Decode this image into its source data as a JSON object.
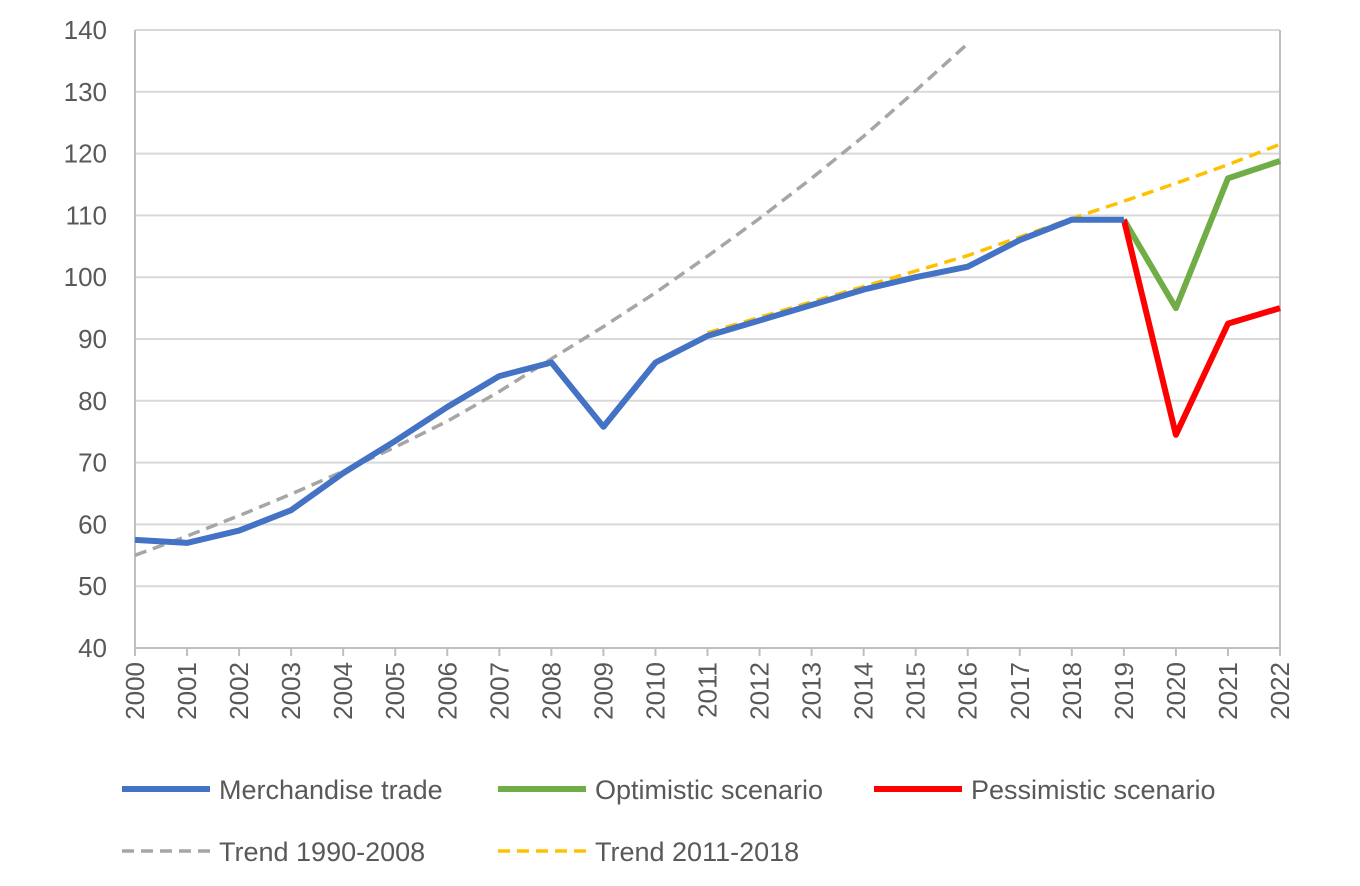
{
  "chart_data": {
    "type": "line",
    "title": "",
    "xlabel": "",
    "ylabel": "",
    "ylim": [
      40,
      140
    ],
    "yticks": [
      40,
      50,
      60,
      70,
      80,
      90,
      100,
      110,
      120,
      130,
      140
    ],
    "x": [
      2000,
      2001,
      2002,
      2003,
      2004,
      2005,
      2006,
      2007,
      2008,
      2009,
      2010,
      2011,
      2012,
      2013,
      2014,
      2015,
      2016,
      2017,
      2018,
      2019,
      2020,
      2021,
      2022
    ],
    "grid": "horizontal",
    "legend_position": "bottom",
    "series": [
      {
        "name": "Merchandise trade",
        "color": "#4472C4",
        "style": "solid",
        "points": [
          [
            2000,
            57.5
          ],
          [
            2001,
            57.0
          ],
          [
            2002,
            59.0
          ],
          [
            2003,
            62.3
          ],
          [
            2004,
            68.3
          ],
          [
            2005,
            73.5
          ],
          [
            2006,
            79.0
          ],
          [
            2007,
            84.0
          ],
          [
            2008,
            86.2
          ],
          [
            2009,
            75.8
          ],
          [
            2010,
            86.2
          ],
          [
            2011,
            90.5
          ],
          [
            2012,
            93.0
          ],
          [
            2013,
            95.5
          ],
          [
            2014,
            98.0
          ],
          [
            2015,
            100.0
          ],
          [
            2016,
            101.7
          ],
          [
            2017,
            106.0
          ],
          [
            2018,
            109.3
          ],
          [
            2019,
            109.3
          ]
        ]
      },
      {
        "name": "Optimistic scenario",
        "color": "#70AD47",
        "style": "solid",
        "points": [
          [
            2019,
            109.3
          ],
          [
            2020,
            95.0
          ],
          [
            2021,
            116.0
          ],
          [
            2022,
            118.8
          ]
        ]
      },
      {
        "name": "Pessimistic scenario",
        "color": "#FF0000",
        "style": "solid",
        "points": [
          [
            2019,
            109.3
          ],
          [
            2020,
            74.5
          ],
          [
            2021,
            92.5
          ],
          [
            2022,
            95.0
          ]
        ]
      },
      {
        "name": "Trend 1990-2008",
        "color": "#A6A6A6",
        "style": "dashed",
        "points": [
          [
            2000,
            55.0
          ],
          [
            2001,
            58.1
          ],
          [
            2002,
            61.4
          ],
          [
            2003,
            64.9
          ],
          [
            2004,
            68.6
          ],
          [
            2005,
            72.5
          ],
          [
            2006,
            76.7
          ],
          [
            2007,
            81.5
          ],
          [
            2008,
            86.8
          ],
          [
            2009,
            92.0
          ],
          [
            2010,
            97.5
          ],
          [
            2011,
            103.4
          ],
          [
            2012,
            109.5
          ],
          [
            2013,
            116.0
          ],
          [
            2014,
            122.8
          ],
          [
            2015,
            130.2
          ],
          [
            2016,
            137.8
          ]
        ]
      },
      {
        "name": "Trend 2011-2018",
        "color": "#FFC000",
        "style": "dashed",
        "points": [
          [
            2011,
            91.0
          ],
          [
            2012,
            93.5
          ],
          [
            2013,
            96.0
          ],
          [
            2014,
            98.5
          ],
          [
            2015,
            101.0
          ],
          [
            2016,
            103.5
          ],
          [
            2017,
            106.5
          ],
          [
            2018,
            109.5
          ],
          [
            2019,
            112.3
          ],
          [
            2020,
            115.2
          ],
          [
            2021,
            118.2
          ],
          [
            2022,
            121.5
          ]
        ]
      }
    ],
    "legend": [
      [
        "Merchandise trade",
        "Optimistic scenario",
        "Pessimistic scenario"
      ],
      [
        "Trend 1990-2008",
        "Trend 2011-2018"
      ]
    ]
  }
}
